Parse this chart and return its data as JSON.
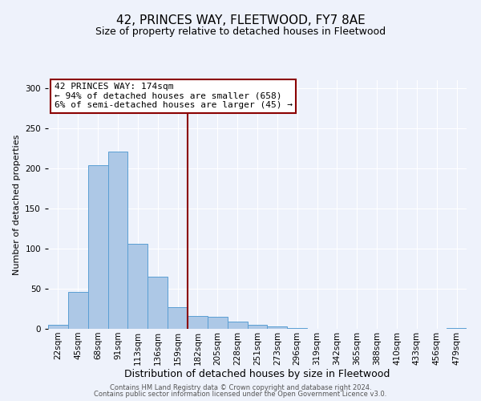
{
  "title": "42, PRINCES WAY, FLEETWOOD, FY7 8AE",
  "subtitle": "Size of property relative to detached houses in Fleetwood",
  "xlabel": "Distribution of detached houses by size in Fleetwood",
  "ylabel": "Number of detached properties",
  "bar_labels": [
    "22sqm",
    "45sqm",
    "68sqm",
    "91sqm",
    "113sqm",
    "136sqm",
    "159sqm",
    "182sqm",
    "205sqm",
    "228sqm",
    "251sqm",
    "273sqm",
    "296sqm",
    "319sqm",
    "342sqm",
    "365sqm",
    "388sqm",
    "410sqm",
    "433sqm",
    "456sqm",
    "479sqm"
  ],
  "bar_values": [
    5,
    46,
    204,
    221,
    106,
    65,
    27,
    16,
    15,
    9,
    5,
    3,
    1,
    0,
    0,
    0,
    0,
    0,
    0,
    0,
    1
  ],
  "bar_color": "#adc8e6",
  "bar_edge_color": "#5a9fd4",
  "vline_color": "#8b0000",
  "annotation_box_text": "42 PRINCES WAY: 174sqm\n← 94% of detached houses are smaller (658)\n6% of semi-detached houses are larger (45) →",
  "annotation_box_edge_color": "#8b0000",
  "ylim": [
    0,
    310
  ],
  "yticks": [
    0,
    50,
    100,
    150,
    200,
    250,
    300
  ],
  "footer_line1": "Contains HM Land Registry data © Crown copyright and database right 2024.",
  "footer_line2": "Contains public sector information licensed under the Open Government Licence v3.0.",
  "background_color": "#eef2fb",
  "title_fontsize": 11,
  "subtitle_fontsize": 9,
  "xlabel_fontsize": 9,
  "ylabel_fontsize": 8,
  "tick_fontsize": 7.5,
  "footer_fontsize": 6,
  "ann_fontsize": 8
}
